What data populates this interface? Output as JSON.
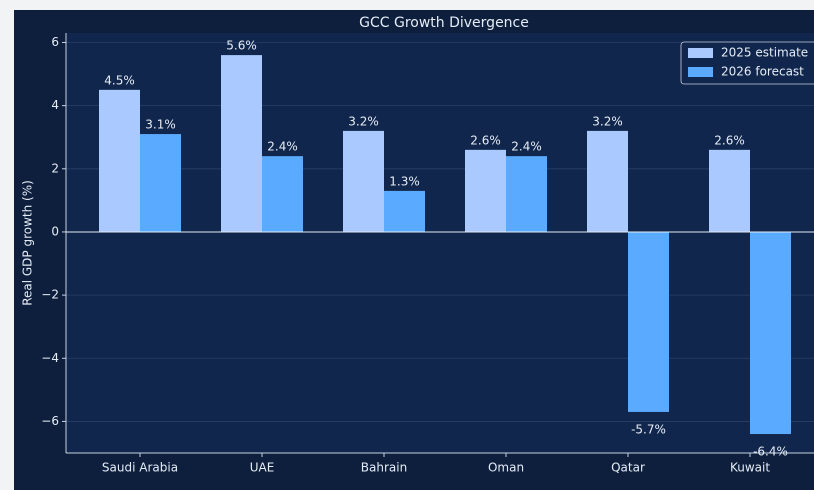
{
  "chart_data": {
    "type": "bar",
    "title": "GCC Growth Divergence",
    "ylabel": "Real GDP growth (%)",
    "categories": [
      "Saudi Arabia",
      "UAE",
      "Bahrain",
      "Oman",
      "Qatar",
      "Kuwait"
    ],
    "series": [
      {
        "name": "2025 estimate",
        "color": "#a9c9ff",
        "values": [
          4.5,
          5.6,
          3.2,
          2.6,
          3.2,
          2.6
        ],
        "value_labels": [
          "4.5%",
          "5.6%",
          "3.2%",
          "2.6%",
          "3.2%",
          "2.6%"
        ]
      },
      {
        "name": "2026 forecast",
        "color": "#5aaaff",
        "values": [
          3.1,
          2.4,
          1.3,
          2.4,
          -5.7,
          -6.4
        ],
        "value_labels": [
          "3.1%",
          "2.4%",
          "1.3%",
          "2.4%",
          "-5.7%",
          "-6.4%"
        ]
      }
    ],
    "ylim": [
      -7,
      6.3
    ],
    "yticks": [
      {
        "value": -6,
        "label": "−6"
      },
      {
        "value": -4,
        "label": "−4"
      },
      {
        "value": -2,
        "label": "−2"
      },
      0,
      2,
      4,
      6
    ],
    "grid": true,
    "legend": "upper right"
  }
}
